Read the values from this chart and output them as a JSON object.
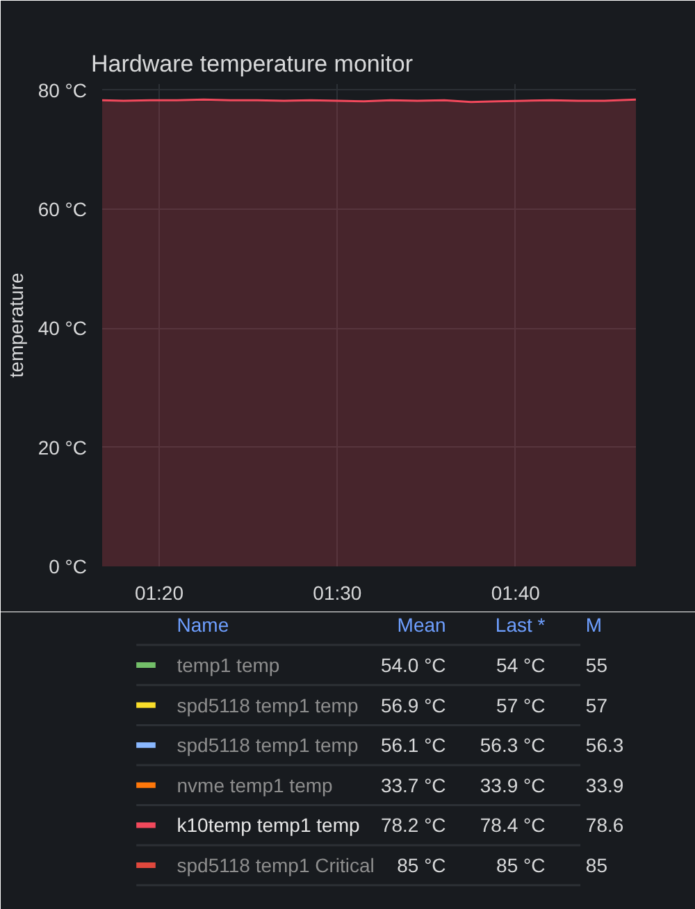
{
  "chart_data": {
    "type": "area",
    "title": "Hardware temperature monitor",
    "ylabel": "temperature",
    "x": [
      1.28,
      1.3,
      1.325,
      1.35,
      1.375,
      1.4,
      1.425,
      1.45,
      1.475,
      1.5,
      1.525,
      1.55,
      1.575,
      1.6,
      1.625,
      1.65,
      1.675,
      1.7,
      1.725,
      1.75,
      1.7793
    ],
    "xlim": [
      1.28,
      1.7793
    ],
    "xticks": [
      {
        "value": 1.3333,
        "label": "01:20"
      },
      {
        "value": 1.5,
        "label": "01:30"
      },
      {
        "value": 1.6667,
        "label": "01:40"
      }
    ],
    "ylim": [
      0,
      81
    ],
    "yticks": [
      {
        "value": 0,
        "label": "0 °C"
      },
      {
        "value": 20,
        "label": "20 °C"
      },
      {
        "value": 40,
        "label": "40 °C"
      },
      {
        "value": 60,
        "label": "60 °C"
      },
      {
        "value": 80,
        "label": "80 °C"
      }
    ],
    "grid": true,
    "legend": "bottom",
    "series": [
      {
        "name": "temp1 temp",
        "color": "#73bf69",
        "values": [
          null,
          null,
          null,
          null,
          null,
          null,
          null,
          null,
          null,
          null,
          null,
          null,
          null,
          null,
          null,
          null,
          null,
          null,
          null,
          null,
          null
        ]
      },
      {
        "name": "spd5118 temp1 temp",
        "color": "#fade2a",
        "values": [
          null,
          null,
          null,
          null,
          null,
          null,
          null,
          null,
          null,
          null,
          null,
          null,
          null,
          null,
          null,
          null,
          null,
          null,
          null,
          null,
          null
        ]
      },
      {
        "name": "spd5118 temp1 temp",
        "color": "#8ab8ff",
        "values": [
          null,
          null,
          null,
          null,
          null,
          null,
          null,
          null,
          null,
          null,
          null,
          null,
          null,
          null,
          null,
          null,
          null,
          null,
          null,
          null,
          null
        ]
      },
      {
        "name": "nvme temp1 temp",
        "color": "#ff780a",
        "values": [
          null,
          null,
          null,
          null,
          null,
          null,
          null,
          null,
          null,
          null,
          null,
          null,
          null,
          null,
          null,
          null,
          null,
          null,
          null,
          null,
          null
        ]
      },
      {
        "name": "k10temp temp1 temp",
        "color": "#f2495c",
        "values": [
          78.3,
          78.2,
          78.3,
          78.3,
          78.4,
          78.3,
          78.3,
          78.2,
          78.3,
          78.2,
          78.1,
          78.3,
          78.2,
          78.3,
          78.0,
          78.1,
          78.2,
          78.3,
          78.2,
          78.2,
          78.4
        ]
      },
      {
        "name": "spd5118 temp1 Critical",
        "color": "#e0483d",
        "values": [
          null,
          null,
          null,
          null,
          null,
          null,
          null,
          null,
          null,
          null,
          null,
          null,
          null,
          null,
          null,
          null,
          null,
          null,
          null,
          null,
          null
        ]
      }
    ],
    "annotations": [
      "Name",
      "Mean",
      "Last *",
      "M",
      "54.0 °C",
      "54 °C",
      "55",
      "56.9 °C",
      "57 °C",
      "57",
      "56.1 °C",
      "56.3 °C",
      "56.3",
      "33.7 °C",
      "33.9 °C",
      "33.9",
      "78.2 °C",
      "78.4 °C",
      "78.6",
      "85 °C",
      "85 °C",
      "85"
    ]
  }
}
